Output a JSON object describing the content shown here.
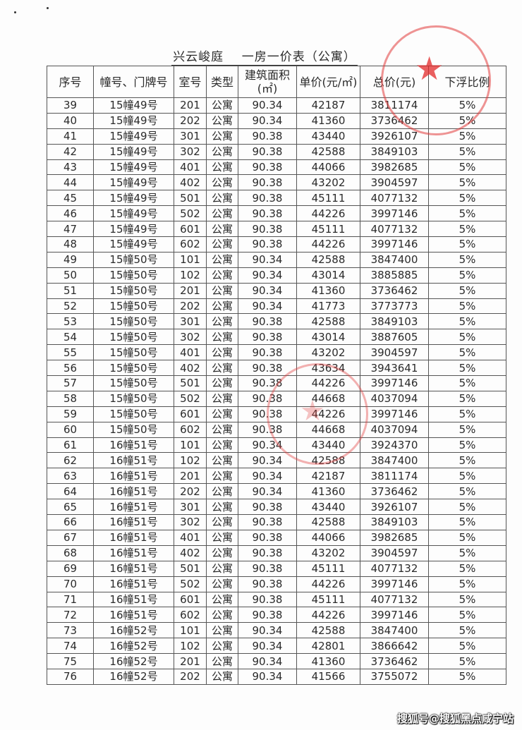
{
  "title": "兴云峻庭    一房一价表（公寓）",
  "columns": [
    "序号",
    "幢号、门牌号",
    "室号",
    "类型",
    "建筑面积(㎡)",
    "单价(元/㎡)",
    "总价(元)",
    "下浮比例"
  ],
  "rows": [
    [
      "39",
      "15幢49号",
      "201",
      "公寓",
      "90.34",
      "42187",
      "3811174",
      "5%"
    ],
    [
      "40",
      "15幢49号",
      "202",
      "公寓",
      "90.34",
      "41360",
      "3736462",
      "5%"
    ],
    [
      "41",
      "15幢49号",
      "301",
      "公寓",
      "90.38",
      "43440",
      "3926107",
      "5%"
    ],
    [
      "42",
      "15幢49号",
      "302",
      "公寓",
      "90.38",
      "42588",
      "3849103",
      "5%"
    ],
    [
      "43",
      "15幢49号",
      "401",
      "公寓",
      "90.38",
      "44066",
      "3982685",
      "5%"
    ],
    [
      "44",
      "15幢49号",
      "402",
      "公寓",
      "90.38",
      "43202",
      "3904597",
      "5%"
    ],
    [
      "45",
      "15幢49号",
      "501",
      "公寓",
      "90.38",
      "45111",
      "4077132",
      "5%"
    ],
    [
      "46",
      "15幢49号",
      "502",
      "公寓",
      "90.38",
      "44226",
      "3997146",
      "5%"
    ],
    [
      "47",
      "15幢49号",
      "601",
      "公寓",
      "90.38",
      "45111",
      "4077132",
      "5%"
    ],
    [
      "48",
      "15幢49号",
      "602",
      "公寓",
      "90.38",
      "44226",
      "3997146",
      "5%"
    ],
    [
      "49",
      "15幢50号",
      "101",
      "公寓",
      "90.34",
      "42588",
      "3847400",
      "5%"
    ],
    [
      "50",
      "15幢50号",
      "102",
      "公寓",
      "90.34",
      "43014",
      "3885885",
      "5%"
    ],
    [
      "51",
      "15幢50号",
      "201",
      "公寓",
      "90.34",
      "41360",
      "3736462",
      "5%"
    ],
    [
      "52",
      "15幢50号",
      "202",
      "公寓",
      "90.34",
      "41773",
      "3773773",
      "5%"
    ],
    [
      "53",
      "15幢50号",
      "301",
      "公寓",
      "90.38",
      "42588",
      "3849103",
      "5%"
    ],
    [
      "54",
      "15幢50号",
      "302",
      "公寓",
      "90.38",
      "43014",
      "3887605",
      "5%"
    ],
    [
      "55",
      "15幢50号",
      "401",
      "公寓",
      "90.38",
      "43202",
      "3904597",
      "5%"
    ],
    [
      "56",
      "15幢50号",
      "402",
      "公寓",
      "90.38",
      "43634",
      "3943641",
      "5%"
    ],
    [
      "57",
      "15幢50号",
      "501",
      "公寓",
      "90.38",
      "44226",
      "3997146",
      "5%"
    ],
    [
      "58",
      "15幢50号",
      "502",
      "公寓",
      "90.38",
      "44668",
      "4037094",
      "5%"
    ],
    [
      "59",
      "15幢50号",
      "601",
      "公寓",
      "90.38",
      "44226",
      "3997146",
      "5%"
    ],
    [
      "60",
      "15幢50号",
      "602",
      "公寓",
      "90.38",
      "44668",
      "4037094",
      "5%"
    ],
    [
      "61",
      "16幢51号",
      "101",
      "公寓",
      "90.34",
      "43440",
      "3924370",
      "5%"
    ],
    [
      "62",
      "16幢51号",
      "102",
      "公寓",
      "90.34",
      "42588",
      "3847400",
      "5%"
    ],
    [
      "63",
      "16幢51号",
      "201",
      "公寓",
      "90.34",
      "42187",
      "3811174",
      "5%"
    ],
    [
      "64",
      "16幢51号",
      "202",
      "公寓",
      "90.34",
      "41360",
      "3736462",
      "5%"
    ],
    [
      "65",
      "16幢51号",
      "301",
      "公寓",
      "90.38",
      "43440",
      "3926107",
      "5%"
    ],
    [
      "66",
      "16幢51号",
      "302",
      "公寓",
      "90.38",
      "42588",
      "3849103",
      "5%"
    ],
    [
      "67",
      "16幢51号",
      "401",
      "公寓",
      "90.38",
      "44066",
      "3982685",
      "5%"
    ],
    [
      "68",
      "16幢51号",
      "402",
      "公寓",
      "90.38",
      "43202",
      "3904597",
      "5%"
    ],
    [
      "69",
      "16幢51号",
      "501",
      "公寓",
      "90.38",
      "45111",
      "4077132",
      "5%"
    ],
    [
      "70",
      "16幢51号",
      "502",
      "公寓",
      "90.38",
      "44226",
      "3997146",
      "5%"
    ],
    [
      "71",
      "16幢51号",
      "601",
      "公寓",
      "90.38",
      "45111",
      "4077132",
      "5%"
    ],
    [
      "72",
      "16幢51号",
      "602",
      "公寓",
      "90.38",
      "44226",
      "3997146",
      "5%"
    ],
    [
      "73",
      "16幢52号",
      "101",
      "公寓",
      "90.34",
      "42588",
      "3847400",
      "5%"
    ],
    [
      "74",
      "16幢52号",
      "102",
      "公寓",
      "90.34",
      "42801",
      "3866642",
      "5%"
    ],
    [
      "75",
      "16幢52号",
      "201",
      "公寓",
      "90.34",
      "41360",
      "3736462",
      "5%"
    ],
    [
      "76",
      "16幢52号",
      "202",
      "公寓",
      "90.34",
      "41566",
      "3755072",
      "5%"
    ]
  ],
  "watermark": "搜狐号@搜狐黑点咸宁站",
  "colors": {
    "stamp": "#e13c3c",
    "text": "#2a2a2a"
  }
}
